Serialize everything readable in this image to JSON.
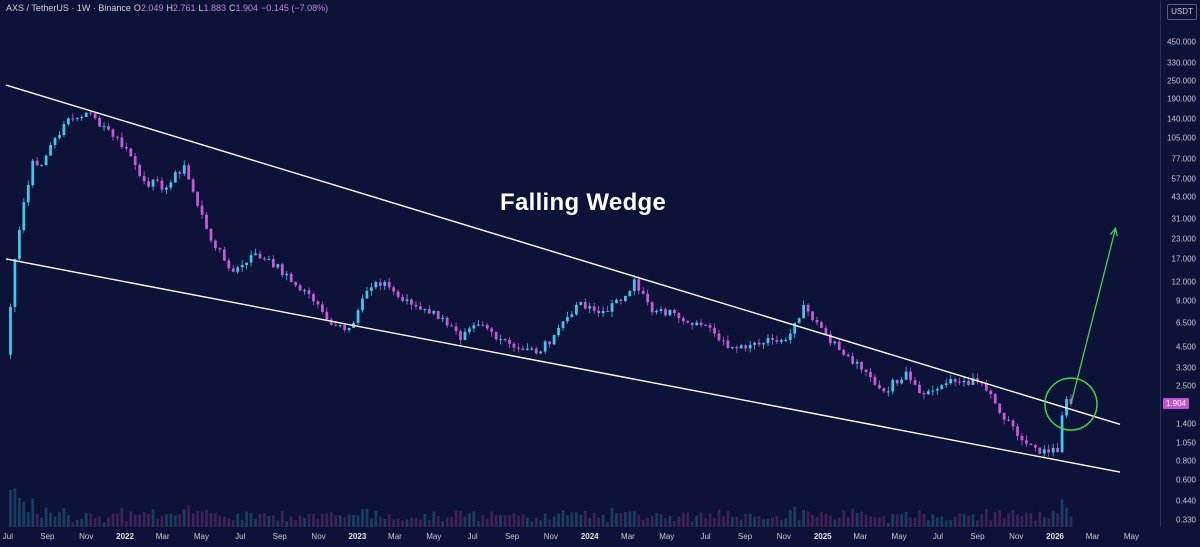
{
  "header": {
    "symbol": "AXS / TetherUS · 1W · Binance",
    "o_label": "O",
    "o_value": "2.049",
    "h_label": "H",
    "h_value": "2.761",
    "l_label": "L",
    "l_value": "1.883",
    "c_label": "C",
    "c_value": "1.904",
    "change": "−0.145 (−7.08%)"
  },
  "annotation": "Falling Wedge",
  "currency_button": "USDT",
  "last_price": "1.904",
  "colors": {
    "background": "#0c1238",
    "bull": "#43c6e8",
    "bear": "#c85ad9",
    "wedge_lines": "#ffffff",
    "breakout": "#3fd44a",
    "last_price_badge": "#c052d6"
  },
  "chart_data": {
    "type": "candlestick",
    "interval": "1W",
    "scale": "log",
    "title": "Falling Wedge",
    "price_ticks": [
      "450.000",
      "330.000",
      "250.000",
      "190.000",
      "140.000",
      "105.000",
      "77.000",
      "57.000",
      "43.000",
      "31.000",
      "23.000",
      "17.000",
      "12.000",
      "9.000",
      "6.500",
      "4.500",
      "3.300",
      "2.500",
      "1.904",
      "1.400",
      "1.050",
      "0.800",
      "0.600",
      "0.440",
      "0.330"
    ],
    "time_ticks": [
      {
        "label": "Jul",
        "year": false
      },
      {
        "label": "Sep",
        "year": false
      },
      {
        "label": "Nov",
        "year": false
      },
      {
        "label": "2022",
        "year": true
      },
      {
        "label": "Mar",
        "year": false
      },
      {
        "label": "May",
        "year": false
      },
      {
        "label": "Jul",
        "year": false
      },
      {
        "label": "Sep",
        "year": false
      },
      {
        "label": "Nov",
        "year": false
      },
      {
        "label": "2023",
        "year": true
      },
      {
        "label": "Mar",
        "year": false
      },
      {
        "label": "May",
        "year": false
      },
      {
        "label": "Jul",
        "year": false
      },
      {
        "label": "Sep",
        "year": false
      },
      {
        "label": "Nov",
        "year": false
      },
      {
        "label": "2024",
        "year": true
      },
      {
        "label": "Mar",
        "year": false
      },
      {
        "label": "May",
        "year": false
      },
      {
        "label": "Jul",
        "year": false
      },
      {
        "label": "Sep",
        "year": false
      },
      {
        "label": "Nov",
        "year": false
      },
      {
        "label": "2025",
        "year": true
      },
      {
        "label": "Mar",
        "year": false
      },
      {
        "label": "May",
        "year": false
      },
      {
        "label": "Jul",
        "year": false
      },
      {
        "label": "Sep",
        "year": false
      },
      {
        "label": "Nov",
        "year": false
      },
      {
        "label": "2026",
        "year": true
      },
      {
        "label": "Mar",
        "year": false
      },
      {
        "label": "May",
        "year": false
      }
    ],
    "price_path": [
      {
        "date": "2021-06-28",
        "price": 4.0
      },
      {
        "date": "2021-07-12",
        "price": 17.0
      },
      {
        "date": "2021-07-26",
        "price": 40.0
      },
      {
        "date": "2021-08-09",
        "price": 75.0
      },
      {
        "date": "2021-08-23",
        "price": 70.0
      },
      {
        "date": "2021-09-06",
        "price": 95.0
      },
      {
        "date": "2021-09-27",
        "price": 130.0
      },
      {
        "date": "2021-11-01",
        "price": 155.0
      },
      {
        "date": "2021-12-06",
        "price": 120.0
      },
      {
        "date": "2022-01-03",
        "price": 90.0
      },
      {
        "date": "2022-01-31",
        "price": 55.0
      },
      {
        "date": "2022-03-07",
        "price": 50.0
      },
      {
        "date": "2022-04-04",
        "price": 70.0
      },
      {
        "date": "2022-04-25",
        "price": 38.0
      },
      {
        "date": "2022-05-23",
        "price": 20.0
      },
      {
        "date": "2022-06-20",
        "price": 14.0
      },
      {
        "date": "2022-07-18",
        "price": 18.0
      },
      {
        "date": "2022-08-15",
        "price": 17.0
      },
      {
        "date": "2022-09-19",
        "price": 12.0
      },
      {
        "date": "2022-10-17",
        "price": 10.0
      },
      {
        "date": "2022-11-14",
        "price": 6.8
      },
      {
        "date": "2022-12-19",
        "price": 6.0
      },
      {
        "date": "2023-01-16",
        "price": 10.5
      },
      {
        "date": "2023-02-13",
        "price": 12.0
      },
      {
        "date": "2023-03-13",
        "price": 9.0
      },
      {
        "date": "2023-04-17",
        "price": 8.0
      },
      {
        "date": "2023-05-15",
        "price": 7.0
      },
      {
        "date": "2023-06-12",
        "price": 5.0
      },
      {
        "date": "2023-07-10",
        "price": 6.3
      },
      {
        "date": "2023-08-21",
        "price": 5.0
      },
      {
        "date": "2023-09-18",
        "price": 4.3
      },
      {
        "date": "2023-10-16",
        "price": 4.2
      },
      {
        "date": "2023-11-13",
        "price": 6.0
      },
      {
        "date": "2023-12-11",
        "price": 8.5
      },
      {
        "date": "2024-01-15",
        "price": 7.5
      },
      {
        "date": "2024-02-19",
        "price": 9.0
      },
      {
        "date": "2024-03-11",
        "price": 12.5
      },
      {
        "date": "2024-04-08",
        "price": 7.6
      },
      {
        "date": "2024-05-13",
        "price": 7.5
      },
      {
        "date": "2024-06-17",
        "price": 6.5
      },
      {
        "date": "2024-07-15",
        "price": 5.5
      },
      {
        "date": "2024-08-12",
        "price": 4.5
      },
      {
        "date": "2024-09-16",
        "price": 4.8
      },
      {
        "date": "2024-10-14",
        "price": 5.0
      },
      {
        "date": "2024-11-11",
        "price": 5.5
      },
      {
        "date": "2024-12-02",
        "price": 8.5
      },
      {
        "date": "2024-12-30",
        "price": 6.0
      },
      {
        "date": "2025-02-03",
        "price": 4.0
      },
      {
        "date": "2025-03-03",
        "price": 3.2
      },
      {
        "date": "2025-04-07",
        "price": 2.3
      },
      {
        "date": "2025-05-12",
        "price": 3.1
      },
      {
        "date": "2025-06-09",
        "price": 2.2
      },
      {
        "date": "2025-07-14",
        "price": 2.6
      },
      {
        "date": "2025-08-11",
        "price": 2.7
      },
      {
        "date": "2025-09-08",
        "price": 2.6
      },
      {
        "date": "2025-10-13",
        "price": 1.5
      },
      {
        "date": "2025-11-10",
        "price": 1.1
      },
      {
        "date": "2025-12-08",
        "price": 0.9
      },
      {
        "date": "2026-01-05",
        "price": 0.92
      },
      {
        "date": "2026-01-12",
        "price": 1.6
      },
      {
        "date": "2026-01-19",
        "price": 2.049
      },
      {
        "date": "2026-01-26",
        "price": 1.904
      }
    ],
    "wedge_upper": [
      {
        "date": "2021-06-28",
        "price": 235
      },
      {
        "date": "2026-04-13",
        "price": 1.4
      }
    ],
    "wedge_lower": [
      {
        "date": "2021-06-28",
        "price": 17
      },
      {
        "date": "2026-04-13",
        "price": 0.68
      }
    ],
    "breakout_arrow": [
      {
        "date": "2026-01-26",
        "price": 1.9
      },
      {
        "date": "2026-04-06",
        "price": 27
      }
    ],
    "grid": false
  }
}
